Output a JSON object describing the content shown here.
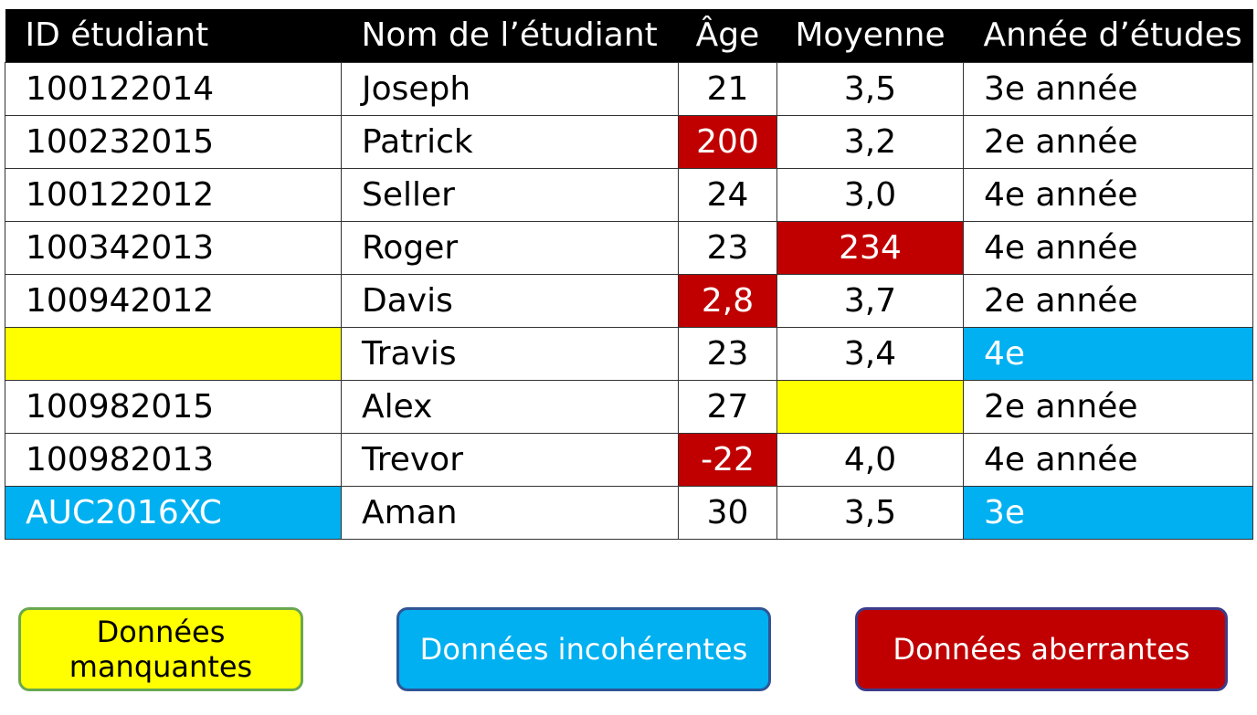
{
  "table": {
    "headers": [
      "ID étudiant",
      "Nom de l’étudiant",
      "Âge",
      "Moyenne",
      "Année d’études"
    ],
    "rows": [
      [
        "100122014",
        "Joseph",
        "21",
        "3,5",
        "3e année"
      ],
      [
        "100232015",
        "Patrick",
        "200",
        "3,2",
        "2e année"
      ],
      [
        "100122012",
        "Seller",
        "24",
        "3,0",
        "4e année"
      ],
      [
        "100342013",
        "Roger",
        "23",
        "234",
        "4e année"
      ],
      [
        "100942012",
        "Davis",
        "2,8",
        "3,7",
        "2e année"
      ],
      [
        "",
        "Travis",
        "23",
        "3,4",
        "4e"
      ],
      [
        "100982015",
        "Alex",
        "27",
        "",
        "2e année"
      ],
      [
        "100982013",
        "Trevor",
        "-22",
        "4,0",
        "4e année"
      ],
      [
        "AUC2016XC",
        "Aman",
        "30",
        "3,5",
        "3e"
      ]
    ]
  },
  "legend": {
    "missing": "Données manquantes",
    "inconsistent": "Données incohérentes",
    "outlier": "Données aberrantes"
  },
  "colors": {
    "missing": "#ffff00",
    "inconsistent": "#00b0f0",
    "outlier": "#c00000",
    "header": "#000000"
  }
}
